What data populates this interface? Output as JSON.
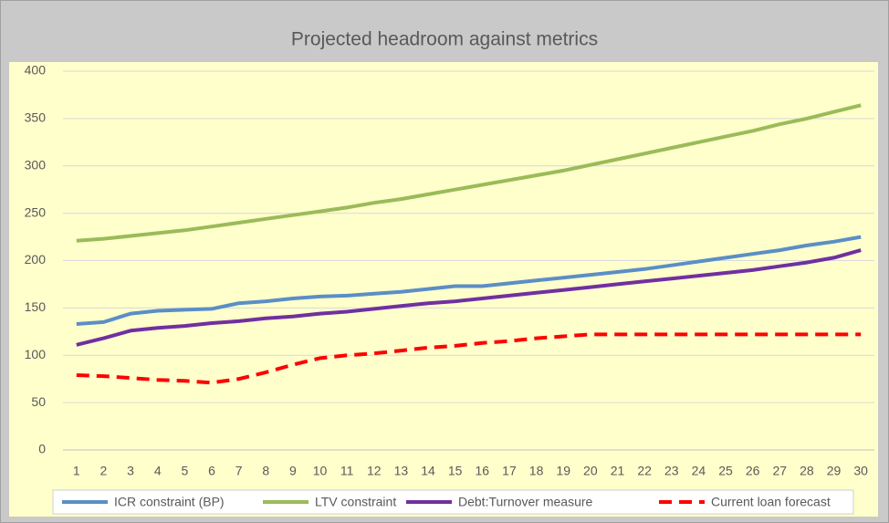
{
  "chart_data": {
    "type": "line",
    "title": "Projected headroom against metrics",
    "categories": [
      1,
      2,
      3,
      4,
      5,
      6,
      7,
      8,
      9,
      10,
      11,
      12,
      13,
      14,
      15,
      16,
      17,
      18,
      19,
      20,
      21,
      22,
      23,
      24,
      25,
      26,
      27,
      28,
      29,
      30
    ],
    "series": [
      {
        "name": "ICR constraint (BP)",
        "color": "#5b8ec6",
        "dash": false,
        "values": [
          133,
          135,
          144,
          147,
          148,
          149,
          155,
          157,
          160,
          162,
          163,
          165,
          167,
          170,
          173,
          173,
          176,
          179,
          182,
          185,
          188,
          191,
          195,
          199,
          203,
          207,
          211,
          216,
          220,
          225
        ]
      },
      {
        "name": "LTV constraint",
        "color": "#9bbb59",
        "dash": false,
        "values": [
          221,
          223,
          226,
          229,
          232,
          236,
          240,
          244,
          248,
          252,
          256,
          261,
          265,
          270,
          275,
          280,
          285,
          290,
          295,
          301,
          307,
          313,
          319,
          325,
          331,
          337,
          344,
          350,
          357,
          364
        ]
      },
      {
        "name": "Debt:Turnover measure",
        "color": "#7030a0",
        "dash": false,
        "values": [
          111,
          118,
          126,
          129,
          131,
          134,
          136,
          139,
          141,
          144,
          146,
          149,
          152,
          155,
          157,
          160,
          163,
          166,
          169,
          172,
          175,
          178,
          181,
          184,
          187,
          190,
          194,
          198,
          203,
          211
        ]
      },
      {
        "name": "Current loan forecast",
        "color": "#ff0000",
        "dash": true,
        "values": [
          79,
          78,
          76,
          74,
          73,
          71,
          75,
          82,
          90,
          97,
          100,
          102,
          105,
          108,
          110,
          113,
          115,
          118,
          120,
          122,
          122,
          122,
          122,
          122,
          122,
          122,
          122,
          122,
          122,
          122
        ]
      }
    ],
    "ylim": [
      0,
      400
    ],
    "yticks": [
      0,
      50,
      100,
      150,
      200,
      250,
      300,
      350,
      400
    ],
    "grid": true,
    "legend": "bottom"
  }
}
